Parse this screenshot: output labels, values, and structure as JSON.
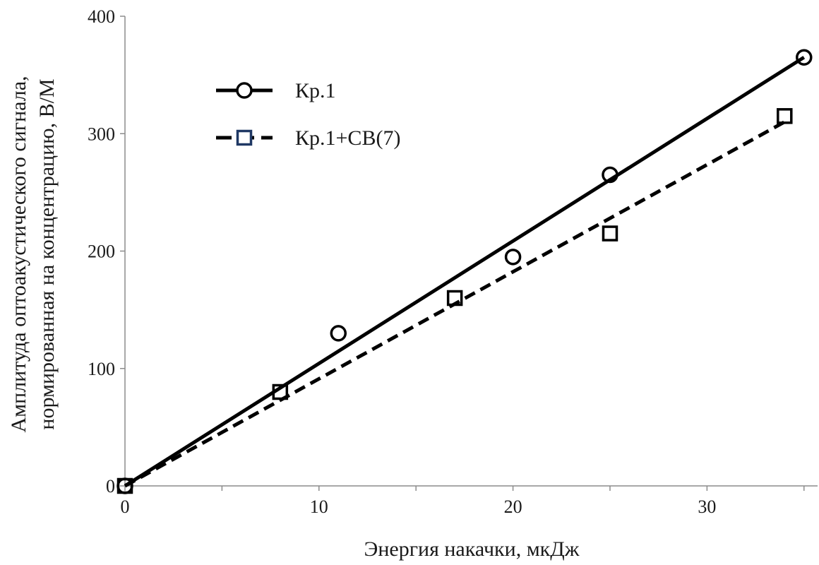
{
  "chart_data": {
    "type": "scatter",
    "title": "",
    "xlabel": "Энергия накачки, мкДж",
    "ylabel_lines": [
      "Амплитуда оптоакустического сигнала,",
      "нормированная на концентрацию, В/М"
    ],
    "xlim": [
      0,
      35.7
    ],
    "ylim": [
      0,
      400
    ],
    "xticks": [
      0,
      10,
      20,
      30
    ],
    "xtick_labels": [
      "0",
      "10",
      "20",
      "30"
    ],
    "xminor_ticks": [
      5,
      15,
      25,
      35
    ],
    "yticks": [
      0,
      100,
      200,
      300,
      400
    ],
    "ytick_labels": [
      "0",
      "100",
      "200",
      "300",
      "400"
    ],
    "grid": false,
    "legend_position": "top-left",
    "series": [
      {
        "name": "Кр.1",
        "marker": "circle",
        "line_style": "solid",
        "color": "#000000",
        "x": [
          0,
          11,
          20,
          25,
          35
        ],
        "y": [
          0,
          130,
          195,
          265,
          365
        ],
        "fit": {
          "x": [
            0,
            35
          ],
          "y": [
            0,
            365
          ]
        }
      },
      {
        "name": "Кр.1+СВ(7)",
        "marker": "square",
        "line_style": "dashed",
        "color": "#000000",
        "legend_marker_color": "#1f3864",
        "x": [
          0,
          8,
          17,
          25,
          34
        ],
        "y": [
          0,
          80,
          160,
          215,
          315
        ],
        "fit": {
          "x": [
            0,
            34
          ],
          "y": [
            0,
            310
          ]
        }
      }
    ]
  }
}
